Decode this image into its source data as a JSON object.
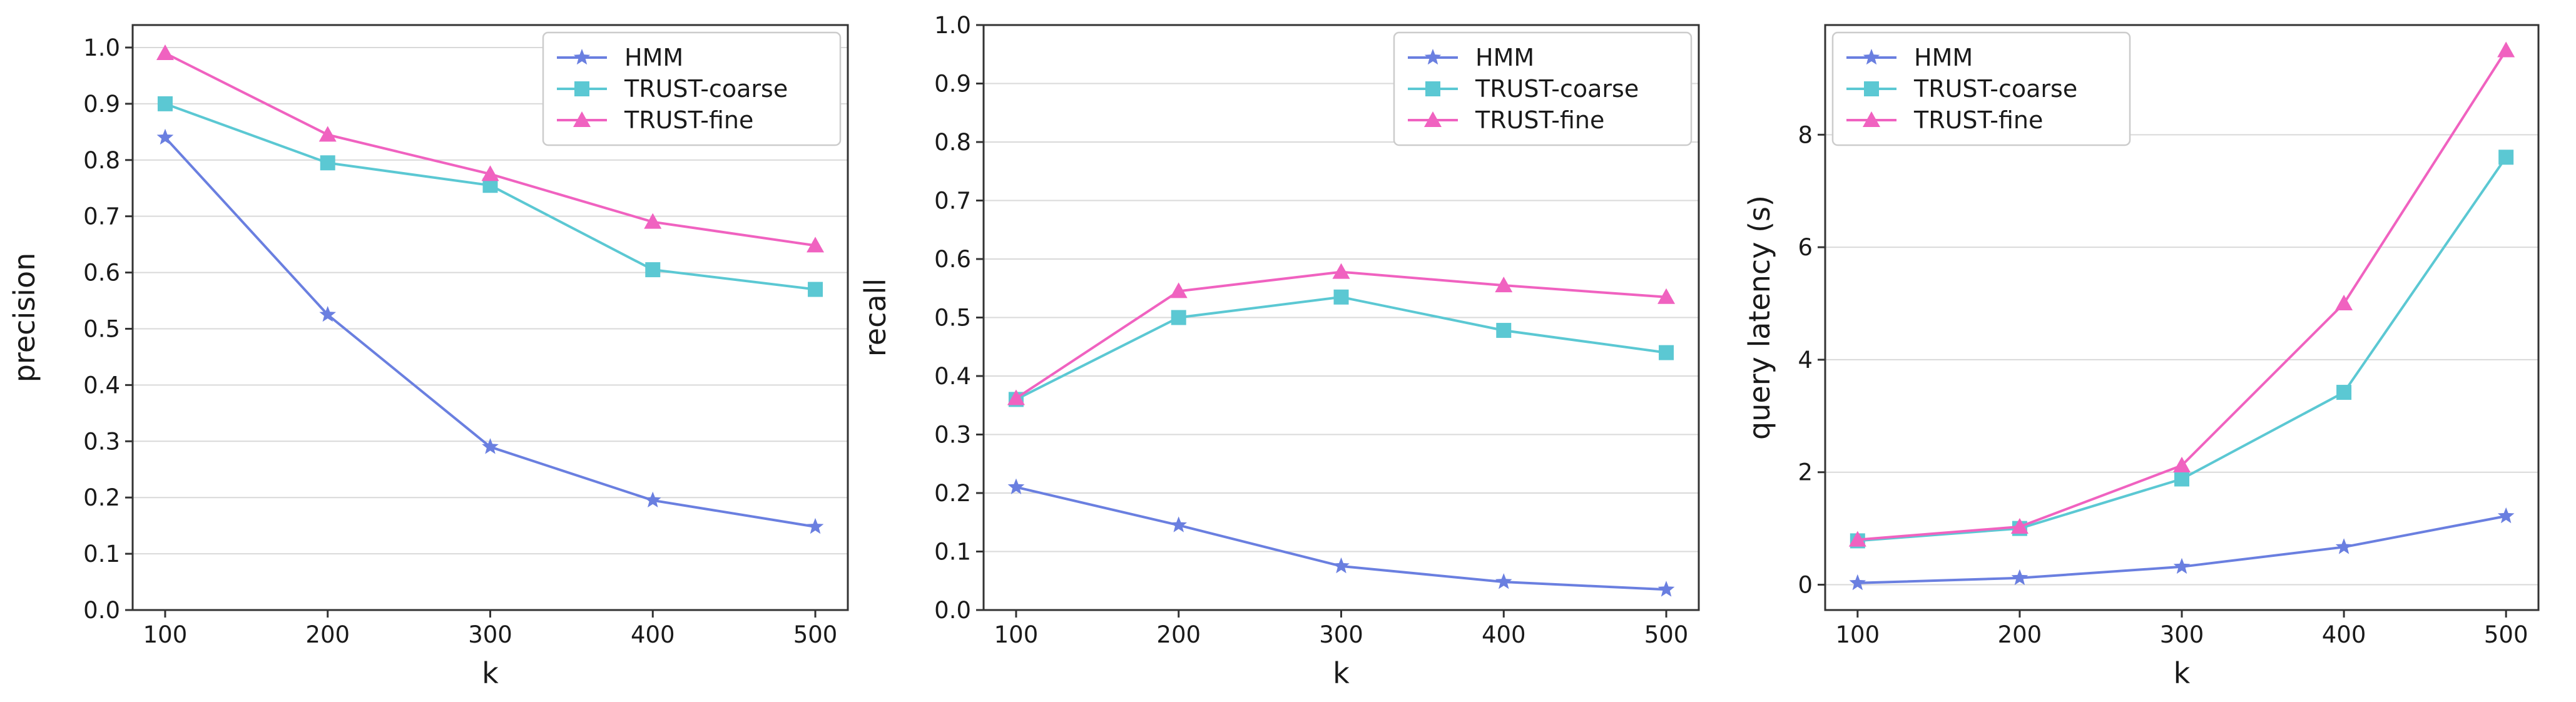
{
  "series_styles": [
    {
      "key": "HMM",
      "color": "#6a7fe0",
      "marker": "star"
    },
    {
      "key": "TRUST-coarse",
      "color": "#5bc8d3",
      "marker": "square"
    },
    {
      "key": "TRUST-fine",
      "color": "#f062c0",
      "marker": "triangle"
    }
  ],
  "chart_data": [
    {
      "type": "line",
      "title": "",
      "xlabel": "k",
      "ylabel": "precision",
      "x": [
        100,
        200,
        300,
        400,
        500
      ],
      "xticks": [
        "100",
        "200",
        "300",
        "400",
        "500"
      ],
      "xlim": [
        80,
        520
      ],
      "ylim": [
        0.0,
        1.04
      ],
      "yticks": [
        0.0,
        0.1,
        0.2,
        0.3,
        0.4,
        0.5,
        0.6,
        0.7,
        0.8,
        0.9,
        1.0
      ],
      "ytick_labels": [
        "0.0",
        "0.1",
        "0.2",
        "0.3",
        "0.4",
        "0.5",
        "0.6",
        "0.7",
        "0.8",
        "0.9",
        "1.0"
      ],
      "grid": true,
      "legend": "top-right",
      "series": [
        {
          "name": "HMM",
          "values": [
            0.84,
            0.525,
            0.29,
            0.195,
            0.148
          ]
        },
        {
          "name": "TRUST-coarse",
          "values": [
            0.9,
            0.795,
            0.755,
            0.605,
            0.57
          ]
        },
        {
          "name": "TRUST-fine",
          "values": [
            0.99,
            0.845,
            0.775,
            0.69,
            0.648
          ]
        }
      ]
    },
    {
      "type": "line",
      "title": "",
      "xlabel": "k",
      "ylabel": "recall",
      "x": [
        100,
        200,
        300,
        400,
        500
      ],
      "xticks": [
        "100",
        "200",
        "300",
        "400",
        "500"
      ],
      "xlim": [
        80,
        520
      ],
      "ylim": [
        0.0,
        1.0
      ],
      "yticks": [
        0.0,
        0.1,
        0.2,
        0.3,
        0.4,
        0.5,
        0.6,
        0.7,
        0.8,
        0.9,
        1.0
      ],
      "ytick_labels": [
        "0.0",
        "0.1",
        "0.2",
        "0.3",
        "0.4",
        "0.5",
        "0.6",
        "0.7",
        "0.8",
        "0.9",
        "1.0"
      ],
      "grid": true,
      "legend": "top-right",
      "series": [
        {
          "name": "HMM",
          "values": [
            0.21,
            0.145,
            0.075,
            0.048,
            0.035
          ]
        },
        {
          "name": "TRUST-coarse",
          "values": [
            0.36,
            0.5,
            0.535,
            0.478,
            0.44
          ]
        },
        {
          "name": "TRUST-fine",
          "values": [
            0.362,
            0.545,
            0.578,
            0.555,
            0.535
          ]
        }
      ]
    },
    {
      "type": "line",
      "title": "",
      "xlabel": "k",
      "ylabel": "query latency (s)",
      "x": [
        100,
        200,
        300,
        400,
        500
      ],
      "xticks": [
        "100",
        "200",
        "300",
        "400",
        "500"
      ],
      "xlim": [
        80,
        520
      ],
      "ylim": [
        -0.45,
        9.95
      ],
      "yticks": [
        0,
        2,
        4,
        6,
        8
      ],
      "ytick_labels": [
        "0",
        "2",
        "4",
        "6",
        "8"
      ],
      "grid": true,
      "legend": "top-left",
      "series": [
        {
          "name": "HMM",
          "values": [
            0.03,
            0.12,
            0.32,
            0.67,
            1.22
          ]
        },
        {
          "name": "TRUST-coarse",
          "values": [
            0.78,
            1.0,
            1.88,
            3.42,
            7.6
          ]
        },
        {
          "name": "TRUST-fine",
          "values": [
            0.8,
            1.03,
            2.12,
            5.0,
            9.5
          ]
        }
      ]
    }
  ]
}
